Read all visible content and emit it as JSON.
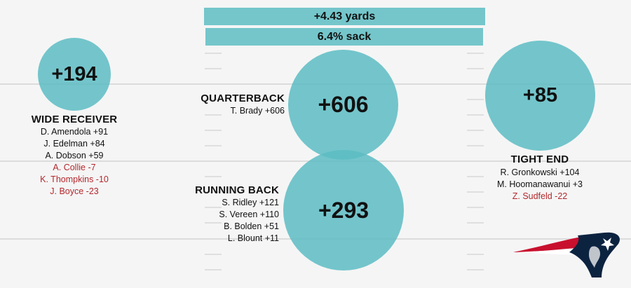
{
  "colors": {
    "circle": "#5cbcc3",
    "bar": "#74c6cb",
    "negative": "#b3282d",
    "field_line": "#dcdcdc",
    "background": "#f5f5f5"
  },
  "bars": {
    "yards": "+4.43 yards",
    "sack": "6.4% sack"
  },
  "chart_data": {
    "type": "bubble",
    "series": [
      {
        "name": "WIDE RECEIVER",
        "value": 194,
        "label": "+194"
      },
      {
        "name": "QUARTERBACK",
        "value": 606,
        "label": "+606"
      },
      {
        "name": "TIGHT END",
        "value": 85,
        "label": "+85"
      },
      {
        "name": "RUNNING BACK",
        "value": 293,
        "label": "+293"
      }
    ]
  },
  "groups": {
    "wr": {
      "title": "WIDE RECEIVER",
      "value": "+194",
      "players": [
        {
          "text": "D. Amendola +91",
          "negative": false
        },
        {
          "text": "J. Edelman +84",
          "negative": false
        },
        {
          "text": "A. Dobson +59",
          "negative": false
        },
        {
          "text": "A. Collie -7",
          "negative": true
        },
        {
          "text": "K. Thompkins -10",
          "negative": true
        },
        {
          "text": "J. Boyce -23",
          "negative": true
        }
      ]
    },
    "qb": {
      "title": "QUARTERBACK",
      "value": "+606",
      "players": [
        {
          "text": "T. Brady +606",
          "negative": false
        }
      ]
    },
    "rb": {
      "title": "RUNNING BACK",
      "value": "+293",
      "players": [
        {
          "text": "S. Ridley +121",
          "negative": false
        },
        {
          "text": "S. Vereen +110",
          "negative": false
        },
        {
          "text": "B. Bolden +51",
          "negative": false
        },
        {
          "text": "L. Blount +11",
          "negative": false
        }
      ]
    },
    "te": {
      "title": "TIGHT END",
      "value": "+85",
      "players": [
        {
          "text": "R. Gronkowski +104",
          "negative": false
        },
        {
          "text": "M. Hoomanawanui +3",
          "negative": false
        },
        {
          "text": "Z. Sudfeld -22",
          "negative": true
        }
      ]
    }
  },
  "logo": {
    "icon": "patriots-logo-icon"
  }
}
